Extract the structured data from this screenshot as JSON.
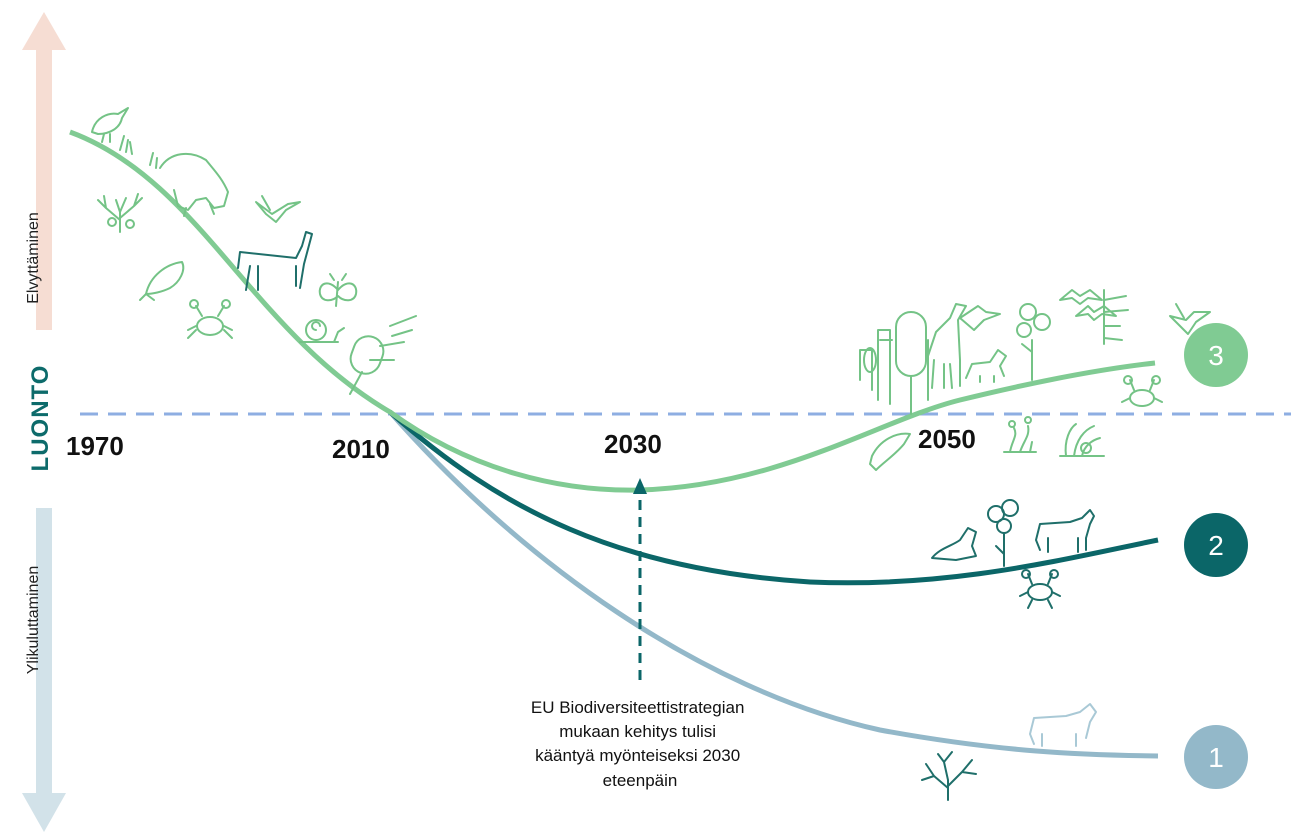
{
  "axis": {
    "up_label": "Elvyttäminen",
    "down_label": "Ylikuluttaminen",
    "baseline_label": "LUONTO"
  },
  "years": [
    "1970",
    "2010",
    "2030",
    "2050"
  ],
  "scenarios": [
    {
      "id": "3",
      "label": "3",
      "color": "#80cb93"
    },
    {
      "id": "2",
      "label": "2",
      "color": "#0b6668"
    },
    {
      "id": "1",
      "label": "1",
      "color": "#93b8c9"
    }
  ],
  "annotation": {
    "lines": [
      "EU Biodiversiteettistrategian",
      "mukaan kehitys tulisi",
      "kääntyä myönteiseksi 2030",
      "eteenpäin"
    ]
  },
  "colors": {
    "up_arrow": "#f6ddd3",
    "down_arrow": "#d2e2e9",
    "baseline": "#8eaee2",
    "icons_green": "#74c386",
    "icons_dark": "#1f6f6a"
  },
  "icons": [
    "bird-icon",
    "deer-icon",
    "coral-icon",
    "hummingbird-icon",
    "giraffe-icon",
    "whale-icon",
    "butterfly-icon",
    "crab-icon",
    "snail-icon",
    "tree-icon",
    "dolphin-icon",
    "seaweed-icon",
    "sea-anemone-icon",
    "bat-icon",
    "seal-icon",
    "cow-icon",
    "dead-coral-icon"
  ]
}
